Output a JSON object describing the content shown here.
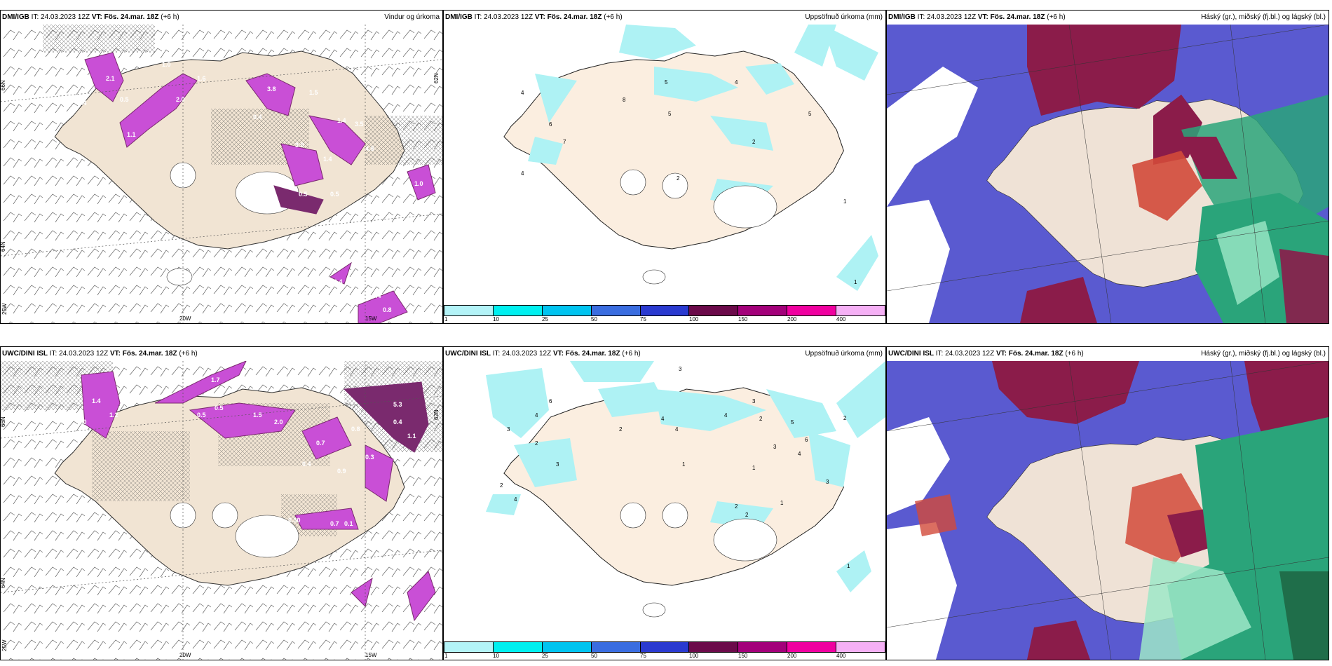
{
  "colors": {
    "land": "#f1e4d3",
    "precip_light": "#aef2f4",
    "pink": "#c94fd6",
    "magenta_dark": "#7a2a6e",
    "blue_cloud": "#5a5ad0",
    "maroon_cloud": "#8b1c4a",
    "green_cloud": "#2aa47a",
    "red_cloud": "#d24a3a"
  },
  "colorbar": {
    "colors": [
      "#b3f3f7",
      "#00f0f0",
      "#00c4f0",
      "#3a6de0",
      "#2a3ad0",
      "#6b0a4a",
      "#a3007a",
      "#f000a0",
      "#f5b0f5"
    ],
    "ticks": [
      "1",
      "10",
      "25",
      "50",
      "75",
      "100",
      "150",
      "200",
      "400"
    ]
  },
  "panels": [
    {
      "id": "p1",
      "source": "DMI/IGB",
      "it": "IT: 24.03.2023 12Z",
      "vt_label": "VT:",
      "vt": "Fös. 24.mar. 18Z",
      "lead": "(+6 h)",
      "title": "Vindur og úrkoma",
      "lat_labels": [
        "66N",
        "64N",
        "62N"
      ],
      "lon_labels": [
        "25W",
        "20W",
        "15W"
      ],
      "values": [
        "2.1",
        "1.4",
        "1.1",
        "2.0",
        "1.6",
        "3.8",
        "1.5",
        "1.4",
        "3.0",
        "3.5",
        "1.4",
        "4.8",
        "0.5",
        "0.5",
        "1.0",
        "0.4",
        "0.8",
        "1.0",
        "0.4",
        "0.4",
        "0.5"
      ]
    },
    {
      "id": "p2",
      "source": "DMI/IGB",
      "it": "IT: 24.03.2023 12Z",
      "vt_label": "VT:",
      "vt": "Fös. 24.mar. 18Z",
      "lead": "(+6 h)",
      "title": "Uppsöfnuð úrkoma (mm)",
      "values": [
        "8",
        "5",
        "4",
        "5",
        "4",
        "6",
        "7",
        "4",
        "2",
        "2",
        "5",
        "1",
        "1"
      ]
    },
    {
      "id": "p3",
      "source": "DMI/IGB",
      "it": "IT: 24.03.2023 12Z",
      "vt_label": "VT:",
      "vt": "Fös. 24.mar. 18Z",
      "lead": "(+6 h)",
      "title": "Háský (gr.), miðský (fj.bl.) og lágský (bl.)"
    },
    {
      "id": "p4",
      "source": "UWC/DINI ISL",
      "it": "IT: 24.03.2023 12Z",
      "vt_label": "VT:",
      "vt": "Fös. 24.mar. 18Z",
      "lead": "(+6 h)",
      "title": "",
      "lat_labels": [
        "66N",
        "64N",
        "62N"
      ],
      "lon_labels": [
        "25W",
        "20W",
        "15W"
      ],
      "values": [
        "1.7",
        "0.5",
        "1.4",
        "1.2",
        "5.3",
        "0.4",
        "1.1",
        "1.0",
        "0.5",
        "1.5",
        "0.4",
        "0.7",
        "0.8",
        "2.0",
        "0.9",
        "0.3",
        "0.30",
        "0.7",
        "0.1"
      ]
    },
    {
      "id": "p5",
      "source": "UWC/DINI ISL",
      "it": "IT: 24.03.2023 12Z",
      "vt_label": "VT:",
      "vt": "Fös. 24.mar. 18Z",
      "lead": "(+6 h)",
      "title": "Uppsöfnuð úrkoma (mm)",
      "values": [
        "3",
        "6",
        "4",
        "3",
        "2",
        "3",
        "2",
        "4",
        "4",
        "4",
        "3",
        "2",
        "5",
        "6",
        "2",
        "4",
        "3",
        "1",
        "1",
        "2",
        "2",
        "3",
        "1",
        "1",
        "4",
        "2"
      ]
    },
    {
      "id": "p6",
      "source": "UWC/DINI ISL",
      "it": "IT: 24.03.2023 12Z",
      "vt_label": "VT:",
      "vt": "Fös. 24.mar. 18Z",
      "lead": "(+6 h)",
      "title": "Háský (gr.), miðský (fj.bl.) og lágský (bl.)"
    }
  ]
}
